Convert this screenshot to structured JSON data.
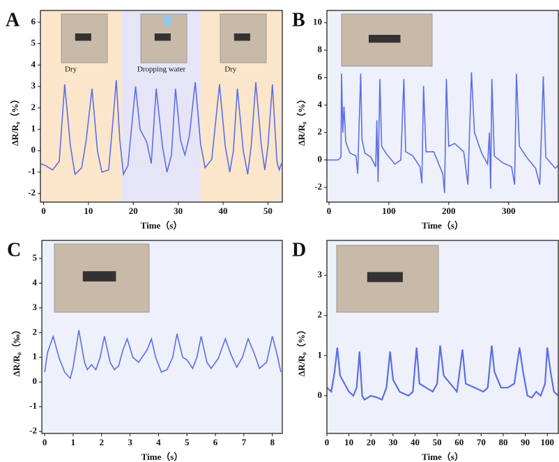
{
  "chart_data": [
    {
      "type": "line",
      "panel": "A",
      "xlabel": "Time（s）",
      "ylabel": "ΔR/R₀（%）",
      "background": "#eef0fb",
      "regions": [
        {
          "x0": -0.7,
          "x1": 17.5,
          "color": "#fbe6cc",
          "label": "Dry"
        },
        {
          "x0": 17.5,
          "x1": 35,
          "color": "#e6e5f7",
          "label": "Dropping water"
        },
        {
          "x0": 35,
          "x1": 53,
          "color": "#fbe6cc",
          "label": "Dry"
        }
      ],
      "xlim": [
        -0.7,
        53.2
      ],
      "xticks": [
        0,
        10,
        20,
        30,
        40,
        50
      ],
      "ylim": [
        -2.4,
        6.55
      ],
      "yticks": [
        -2,
        -1,
        0,
        1,
        2,
        3,
        4,
        5,
        6
      ],
      "series": [
        {
          "color": "#5a6ee8",
          "x": [
            -0.7,
            0.5,
            2,
            3.5,
            4.7,
            6,
            7,
            8.5,
            9.5,
            10.8,
            12,
            13,
            14.5,
            15.5,
            16.2,
            17,
            17.8,
            18.8,
            20.5,
            21.5,
            23,
            24,
            25.1,
            26.5,
            27.5,
            28.5,
            29.4,
            30.5,
            31.5,
            32.5,
            33.8,
            35,
            36,
            37.5,
            39.2,
            40.5,
            41.5,
            42.3,
            43.2,
            44.5,
            45.5,
            46.3,
            47.3,
            48.5,
            49.3,
            50,
            51,
            52,
            52.5,
            53
          ],
          "values": [
            -0.6,
            -0.7,
            -0.9,
            -0.5,
            3.1,
            0.2,
            -1.1,
            -0.8,
            0.5,
            2.9,
            0.0,
            -1.0,
            -0.9,
            1.5,
            3.3,
            0.5,
            -1.1,
            -0.7,
            3.0,
            1.0,
            0.4,
            -0.6,
            2.9,
            0.2,
            -1.0,
            -0.2,
            2.9,
            0.5,
            -0.2,
            0.7,
            3.2,
            0.3,
            -0.8,
            -0.4,
            3.1,
            0.2,
            -1.0,
            0.0,
            2.9,
            0.0,
            -1.1,
            0.3,
            3.2,
            0.3,
            -0.9,
            0.2,
            3.1,
            -0.5,
            -0.9,
            -0.6
          ]
        }
      ]
    },
    {
      "type": "line",
      "panel": "B",
      "xlabel": "Time（s）",
      "ylabel": "ΔR/R₀（%）",
      "background": "#eef0fb",
      "xlim": [
        -3.5,
        383
      ],
      "xticks": [
        0,
        100,
        200,
        300
      ],
      "ylim": [
        -3.07,
        10.9
      ],
      "yticks": [
        -2,
        0,
        2,
        4,
        6,
        8,
        10
      ],
      "series": [
        {
          "color": "#5a6ee8",
          "x": [
            -3,
            15,
            20,
            21,
            23,
            25,
            28,
            35,
            45,
            48,
            50,
            53,
            55,
            60,
            70,
            78,
            80,
            82,
            85,
            88,
            95,
            110,
            120,
            125,
            128,
            140,
            152,
            155,
            158,
            162,
            175,
            190,
            193,
            196,
            200,
            210,
            225,
            232,
            238,
            243,
            255,
            265,
            268,
            270,
            272,
            276,
            290,
            305,
            310,
            313,
            318,
            330,
            345,
            352,
            358,
            362,
            370,
            378,
            383
          ],
          "values": [
            0,
            0,
            0.2,
            6.3,
            2,
            3.9,
            1.3,
            0.5,
            0.3,
            -1,
            2.2,
            6.3,
            1.5,
            0.5,
            0.2,
            -0.5,
            2.9,
            -1.6,
            5.9,
            1,
            0.5,
            -0.3,
            0,
            5.9,
            0.6,
            0.3,
            -0.5,
            -1.7,
            5.4,
            0.6,
            0.6,
            -1,
            -2.4,
            5.9,
            1,
            1.2,
            0.6,
            -1.8,
            6.4,
            2,
            0.5,
            -0.3,
            2,
            -2.1,
            5.9,
            0.3,
            -0.2,
            -0.5,
            -1.8,
            6.3,
            1,
            0.2,
            -0.6,
            -1.8,
            6.1,
            0.2,
            -0.2,
            -0.6,
            -0.4
          ]
        }
      ]
    },
    {
      "type": "line",
      "panel": "C",
      "xlabel": "Time（s）",
      "ylabel": "ΔR/R₀（‰）",
      "background": "#eef0fb",
      "xlim": [
        -0.1,
        8.35
      ],
      "xticks": [
        0,
        1,
        2,
        3,
        4,
        5,
        6,
        7,
        8
      ],
      "ylim": [
        -2.08,
        5.73
      ],
      "yticks": [
        -2,
        -1,
        0,
        1,
        2,
        3,
        4,
        5
      ],
      "series": [
        {
          "color": "#5a6ee8",
          "x": [
            0,
            0.1,
            0.3,
            0.5,
            0.7,
            0.9,
            1.0,
            1.2,
            1.4,
            1.5,
            1.65,
            1.8,
            1.95,
            2.1,
            2.3,
            2.45,
            2.6,
            2.75,
            2.9,
            3.1,
            3.3,
            3.6,
            3.75,
            3.9,
            4.1,
            4.3,
            4.5,
            4.65,
            4.85,
            5.0,
            5.2,
            5.35,
            5.5,
            5.7,
            5.85,
            6.1,
            6.35,
            6.55,
            6.75,
            6.95,
            7.15,
            7.35,
            7.55,
            7.8,
            8.0,
            8.15,
            8.3
          ],
          "values": [
            0.4,
            1.2,
            1.85,
            1.0,
            0.4,
            0.15,
            0.6,
            2.1,
            0.8,
            0.5,
            0.7,
            0.5,
            1.0,
            1.85,
            0.8,
            0.5,
            0.65,
            1.3,
            1.75,
            1.0,
            0.8,
            1.3,
            1.75,
            1.0,
            0.4,
            0.5,
            1.0,
            1.95,
            1.0,
            0.9,
            0.55,
            1.0,
            1.85,
            0.8,
            0.55,
            0.95,
            1.75,
            1.1,
            0.6,
            1.0,
            1.75,
            1.2,
            0.55,
            0.8,
            1.85,
            1.2,
            0.4
          ]
        }
      ]
    },
    {
      "type": "line",
      "panel": "D",
      "xlabel": "Time（s）",
      "ylabel": "ΔR/R₀（%）",
      "background": "#eef0fb",
      "xlim": [
        0,
        105
      ],
      "xticks": [
        0,
        10,
        20,
        30,
        40,
        50,
        60,
        70,
        80,
        90,
        100
      ],
      "ylim": [
        -0.94,
        3.87
      ],
      "yticks": [
        0,
        1,
        2,
        3
      ],
      "series": [
        {
          "color": "#5a6ee8",
          "x": [
            0,
            2,
            3.5,
            4.7,
            6,
            8,
            10,
            12,
            13.5,
            14.8,
            16,
            17,
            20,
            23,
            25,
            27,
            28.7,
            30,
            33,
            37,
            39,
            40.7,
            42,
            45,
            48,
            50,
            51.4,
            53,
            56,
            59,
            61.5,
            63,
            67,
            71,
            73,
            74.8,
            76,
            79,
            82,
            85,
            87.4,
            89,
            91,
            93,
            95,
            97,
            99,
            100,
            101.5,
            103,
            105
          ],
          "values": [
            0.2,
            0.1,
            0.6,
            1.2,
            0.5,
            0.3,
            0.1,
            0,
            0.2,
            1.1,
            0,
            -0.1,
            0,
            -0.05,
            -0.1,
            0.2,
            1.1,
            0.4,
            0.1,
            0,
            0.1,
            1.2,
            0.3,
            0.2,
            0.1,
            0.3,
            1.25,
            0.5,
            0.3,
            0.1,
            1.15,
            0.3,
            0.2,
            0.1,
            0.2,
            1.25,
            0.6,
            0.2,
            0.2,
            0.3,
            1.2,
            0.6,
            0,
            -0.05,
            0.1,
            0,
            0.3,
            1.2,
            0.6,
            0.1,
            0
          ]
        }
      ]
    }
  ]
}
